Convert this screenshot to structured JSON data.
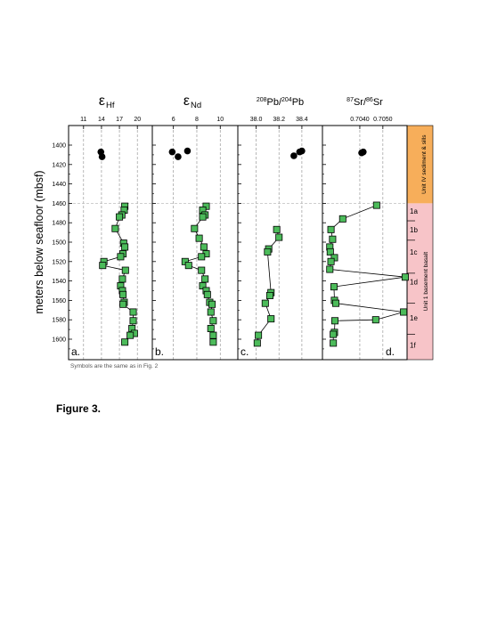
{
  "figure": {
    "caption": "Figure 3.",
    "footnote": "Symbols are the same as in Fig. 2",
    "yaxis_label": "meters below seafloor (mbsf)"
  },
  "colors": {
    "basement_square": "#4cbb5a",
    "sediment_circle": "#000000",
    "unit_iv_band": "#f7ae5a",
    "unit_1_band": "#f7c4c8"
  },
  "units": {
    "unit_iv_label": "Unit IV sediment & sills",
    "unit_1_label": "Unit 1 basement basalt",
    "subunits": [
      "1a",
      "1b",
      "1c",
      "1d",
      "1e",
      "1f"
    ]
  },
  "chart_data": [
    {
      "type": "scatter",
      "panel_letter": "a.",
      "title_symbol": "ε",
      "title_sub": "Hf",
      "xlim": [
        8.5,
        22.5
      ],
      "xticks": [
        11,
        14,
        17,
        20
      ],
      "ylim": [
        1390,
        1610
      ],
      "yticks": [
        1400,
        1420,
        1440,
        1460,
        1480,
        1500,
        1520,
        1540,
        1560,
        1580,
        1600
      ],
      "series": [
        {
          "marker": "circle",
          "points": [
            [
              13.9,
              1407
            ],
            [
              14.1,
              1412
            ]
          ]
        },
        {
          "marker": "square",
          "points": [
            [
              17.9,
              1463
            ],
            [
              17.8,
              1467
            ],
            [
              17.4,
              1472
            ],
            [
              17.0,
              1474
            ],
            [
              16.3,
              1486
            ],
            [
              17.7,
              1501
            ],
            [
              17.9,
              1505
            ],
            [
              17.6,
              1512
            ],
            [
              17.2,
              1515
            ],
            [
              14.4,
              1520
            ],
            [
              14.2,
              1524
            ],
            [
              18.0,
              1529
            ],
            [
              17.5,
              1538
            ],
            [
              17.2,
              1545
            ],
            [
              17.5,
              1550
            ],
            [
              17.6,
              1554
            ],
            [
              17.8,
              1562
            ],
            [
              17.6,
              1564
            ],
            [
              19.3,
              1572
            ],
            [
              19.3,
              1581
            ],
            [
              19.1,
              1589
            ],
            [
              19.5,
              1594
            ],
            [
              18.8,
              1596
            ],
            [
              17.9,
              1603
            ]
          ]
        }
      ]
    },
    {
      "type": "scatter",
      "panel_letter": "b.",
      "title_symbol": "ε",
      "title_sub": "Nd",
      "xlim": [
        4.2,
        11.5
      ],
      "xticks": [
        6,
        8,
        10
      ],
      "ylim": [
        1390,
        1610
      ],
      "yticks": [
        1400,
        1420,
        1440,
        1460,
        1480,
        1500,
        1520,
        1540,
        1560,
        1580,
        1600
      ],
      "series": [
        {
          "marker": "circle",
          "points": [
            [
              5.9,
              1407
            ],
            [
              6.4,
              1412
            ],
            [
              7.2,
              1406
            ]
          ]
        },
        {
          "marker": "square",
          "points": [
            [
              8.8,
              1463
            ],
            [
              8.5,
              1467
            ],
            [
              8.7,
              1472
            ],
            [
              8.5,
              1474
            ],
            [
              7.8,
              1486
            ],
            [
              8.2,
              1496
            ],
            [
              8.6,
              1505
            ],
            [
              8.8,
              1512
            ],
            [
              8.4,
              1515
            ],
            [
              7.0,
              1520
            ],
            [
              7.3,
              1524
            ],
            [
              8.4,
              1529
            ],
            [
              8.7,
              1538
            ],
            [
              8.5,
              1545
            ],
            [
              8.8,
              1550
            ],
            [
              8.9,
              1554
            ],
            [
              9.1,
              1562
            ],
            [
              9.3,
              1564
            ],
            [
              9.2,
              1572
            ],
            [
              9.4,
              1581
            ],
            [
              9.2,
              1589
            ],
            [
              9.4,
              1596
            ],
            [
              9.4,
              1603
            ]
          ]
        }
      ]
    },
    {
      "type": "line",
      "panel_letter": "c.",
      "title_sup1": "208",
      "title_main1": "Pb/",
      "title_sup2": "204",
      "title_main2": "Pb",
      "xlim": [
        37.84,
        38.58
      ],
      "xticks": [
        38.0,
        38.2,
        38.4
      ],
      "xticklabels": [
        "38.0",
        "38.2",
        "38.4"
      ],
      "ylim": [
        1390,
        1610
      ],
      "yticks": [
        1400,
        1420,
        1440,
        1460,
        1480,
        1500,
        1520,
        1540,
        1560,
        1580,
        1600
      ],
      "series": [
        {
          "marker": "circle",
          "points": [
            [
              38.33,
              1411
            ],
            [
              38.38,
              1407
            ],
            [
              38.4,
              1406
            ]
          ]
        },
        {
          "marker": "square",
          "points": [
            [
              38.18,
              1487
            ],
            [
              38.2,
              1495
            ],
            [
              38.11,
              1507
            ],
            [
              38.1,
              1510
            ],
            [
              38.13,
              1552
            ],
            [
              38.12,
              1555
            ],
            [
              38.08,
              1563
            ],
            [
              38.13,
              1579
            ],
            [
              38.02,
              1596
            ],
            [
              38.01,
              1604
            ]
          ]
        }
      ]
    },
    {
      "type": "line",
      "panel_letter": "d.",
      "title_sup1": "87",
      "title_main1": "Sr/",
      "title_sup2": "86",
      "title_main2": "Sr",
      "xlim": [
        0.70238,
        0.70605
      ],
      "xticks": [
        0.704,
        0.705
      ],
      "xticklabels": [
        "0.7040",
        "0.7050"
      ],
      "ylim": [
        1390,
        1610
      ],
      "yticks": [
        1400,
        1420,
        1440,
        1460,
        1480,
        1500,
        1520,
        1540,
        1560,
        1580,
        1600
      ],
      "series": [
        {
          "marker": "circle",
          "points": [
            [
              0.70408,
              1408
            ],
            [
              0.70415,
              1407
            ]
          ]
        },
        {
          "marker": "square",
          "points": [
            [
              0.70473,
              1462
            ],
            [
              0.70326,
              1476
            ],
            [
              0.70275,
              1487
            ],
            [
              0.70282,
              1497
            ],
            [
              0.7027,
              1505
            ],
            [
              0.70272,
              1510
            ],
            [
              0.7029,
              1516
            ],
            [
              0.70275,
              1520
            ],
            [
              0.7027,
              1528
            ],
            [
              0.70597,
              1536
            ],
            [
              0.70288,
              1546
            ],
            [
              0.7029,
              1560
            ],
            [
              0.70296,
              1563
            ],
            [
              0.7059,
              1572
            ],
            [
              0.70469,
              1580
            ],
            [
              0.70292,
              1581
            ],
            [
              0.7029,
              1593
            ],
            [
              0.70285,
              1595
            ],
            [
              0.70285,
              1604
            ]
          ]
        }
      ]
    }
  ]
}
